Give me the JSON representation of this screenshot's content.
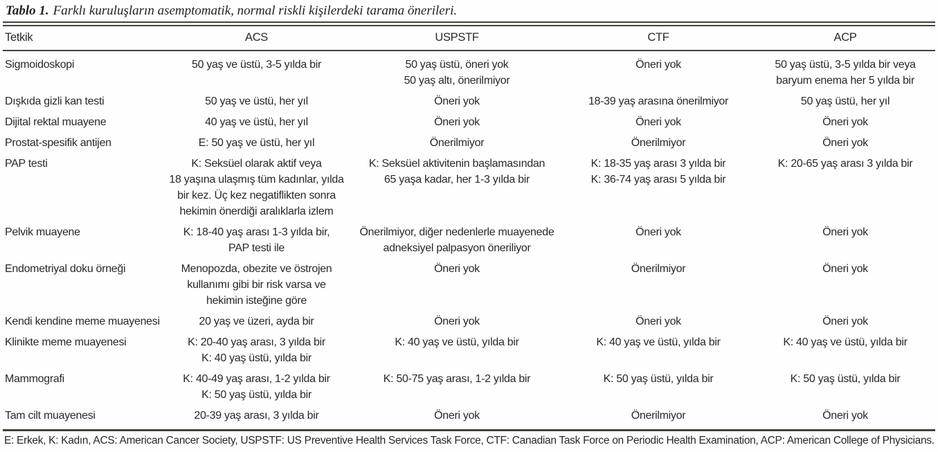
{
  "title": {
    "label": "Tablo 1.",
    "text": "Farklı kuruluşların asemptomatik, normal riskli kişilerdeki tarama önerileri."
  },
  "table": {
    "columns": [
      "Tetkik",
      "ACS",
      "USPSTF",
      "CTF",
      "ACP"
    ],
    "rows": [
      {
        "tetkik": "Sigmoidoskopi",
        "acs": "50 yaş ve üstü, 3-5 yılda bir",
        "uspstf": "50 yaş üstü, öneri yok\n50 yaş altı, önerilmiyor",
        "ctf": "Öneri yok",
        "acp": "50 yaş üstü, 3-5 yılda bir veya\nbaryum enema her 5 yılda bir"
      },
      {
        "tetkik": "Dışkıda gizli kan testi",
        "acs": "50 yaş ve üstü, her yıl",
        "uspstf": "Öneri yok",
        "ctf": "18-39 yaş arasına önerilmiyor",
        "acp": "50 yaş üstü, her yıl"
      },
      {
        "tetkik": "Dijital rektal muayene",
        "acs": "40 yaş ve üstü, her yıl",
        "uspstf": "Öneri yok",
        "ctf": "Öneri yok",
        "acp": "Öneri yok"
      },
      {
        "tetkik": "Prostat-spesifik antijen",
        "acs": "E: 50 yaş ve üstü, her yıl",
        "uspstf": "Önerilmiyor",
        "ctf": "Önerilmiyor",
        "acp": "Öneri yok"
      },
      {
        "tetkik": "PAP testi",
        "acs": "K: Seksüel olarak aktif veya\n18 yaşına ulaşmış tüm kadınlar, yılda\nbir kez. Üç kez negatiflikten sonra\nhekimin önerdiği aralıklarla izlem",
        "uspstf": "K: Seksüel aktivitenin başlamasından\n65 yaşa kadar, her 1-3 yılda bir",
        "ctf": "K: 18-35 yaş arası 3 yılda bir\nK: 36-74 yaş arası 5 yılda bir",
        "acp": "K: 20-65 yaş arası 3 yılda bir"
      },
      {
        "tetkik": "Pelvik muayene",
        "acs": "K: 18-40 yaş arası 1-3 yılda bir,\nPAP testi ile",
        "uspstf": "Önerilmiyor, diğer nedenlerle muayenede\nadneksiyel palpasyon öneriliyor",
        "ctf": "Öneri yok",
        "acp": "Öneri yok"
      },
      {
        "tetkik": "Endometriyal doku örneği",
        "acs": "Menopozda, obezite ve östrojen\nkullanımı gibi bir risk varsa ve\nhekimin isteğine göre",
        "uspstf": "Öneri yok",
        "ctf": "Önerilmiyor",
        "acp": "Öneri yok"
      },
      {
        "tetkik": "Kendi kendine meme muayenesi",
        "acs": "20 yaş ve üzeri, ayda bir",
        "uspstf": "Öneri yok",
        "ctf": "Öneri yok",
        "acp": "Öneri yok"
      },
      {
        "tetkik": "Klinikte meme muayenesi",
        "acs": "K: 20-40 yaş arası, 3 yılda bir\nK: 40 yaş üstü, yılda bir",
        "uspstf": "K: 40 yaş ve üstü, yılda bir",
        "ctf": "K: 40 yaş ve üstü, yılda bir",
        "acp": "K: 40 yaş ve üstü, yılda bir"
      },
      {
        "tetkik": "Mammografi",
        "acs": "K: 40-49 yaş arası, 1-2 yılda bir\nK: 50 yaş üstü, yılda bir",
        "uspstf": "K: 50-75 yaş arası, 1-2 yılda bir",
        "ctf": "K: 50 yaş üstü, yılda bir",
        "acp": "K: 50 yaş üstü, yılda bir"
      },
      {
        "tetkik": "Tam cilt muayenesi",
        "acs": "20-39 yaş arası, 3 yılda bir",
        "uspstf": "Öneri yok",
        "ctf": "Önerilmiyor",
        "acp": "Öneri yok"
      }
    ]
  },
  "footnote": "E: Erkek, K: Kadın, ACS: American Cancer Society, USPSTF: US Preventive Health Services Task Force, CTF: Canadian Task Force on Periodic Health Examination, ACP: American College of Physicians."
}
